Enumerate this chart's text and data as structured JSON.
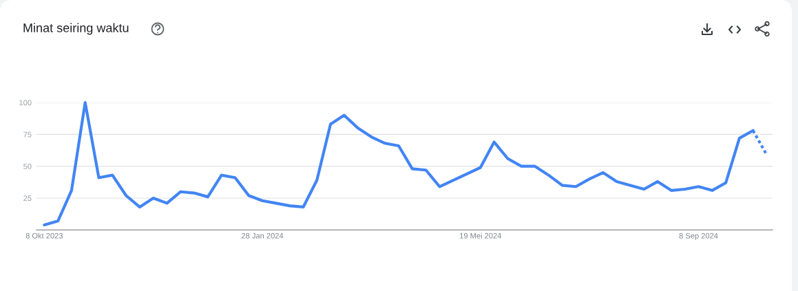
{
  "chart_data": {
    "type": "line",
    "title": "Minat seiring waktu",
    "x": [
      "2023-10-08",
      "2023-10-15",
      "2023-10-22",
      "2023-10-29",
      "2023-11-05",
      "2023-11-12",
      "2023-11-19",
      "2023-11-26",
      "2023-12-03",
      "2023-12-10",
      "2023-12-17",
      "2023-12-24",
      "2023-12-31",
      "2024-01-07",
      "2024-01-14",
      "2024-01-21",
      "2024-01-28",
      "2024-02-04",
      "2024-02-11",
      "2024-02-18",
      "2024-02-25",
      "2024-03-03",
      "2024-03-10",
      "2024-03-17",
      "2024-03-24",
      "2024-03-31",
      "2024-04-07",
      "2024-04-14",
      "2024-04-21",
      "2024-04-28",
      "2024-05-05",
      "2024-05-12",
      "2024-05-19",
      "2024-05-26",
      "2024-06-02",
      "2024-06-09",
      "2024-06-16",
      "2024-06-23",
      "2024-06-30",
      "2024-07-07",
      "2024-07-14",
      "2024-07-21",
      "2024-07-28",
      "2024-08-04",
      "2024-08-11",
      "2024-08-18",
      "2024-08-25",
      "2024-09-01",
      "2024-09-08",
      "2024-09-15",
      "2024-09-22",
      "2024-09-29",
      "2024-10-06",
      "2024-10-13"
    ],
    "series": [
      {
        "color": "#4285f4",
        "line_style": "solid",
        "values": [
          4,
          7,
          31,
          100,
          41,
          43,
          27,
          18,
          25,
          21,
          30,
          29,
          26,
          43,
          41,
          27,
          23,
          21,
          19,
          18,
          39,
          83,
          90,
          80,
          73,
          68,
          66,
          48,
          47,
          34,
          39,
          44,
          49,
          69,
          56,
          50,
          50,
          43,
          35,
          34,
          40,
          45,
          38,
          35,
          32,
          38,
          31,
          32,
          34,
          31,
          37,
          72,
          78,
          null
        ]
      },
      {
        "color": "#4285f4",
        "line_style": "dotted",
        "values": [
          null,
          null,
          null,
          null,
          null,
          null,
          null,
          null,
          null,
          null,
          null,
          null,
          null,
          null,
          null,
          null,
          null,
          null,
          null,
          null,
          null,
          null,
          null,
          null,
          null,
          null,
          null,
          null,
          null,
          null,
          null,
          null,
          null,
          null,
          null,
          null,
          null,
          null,
          null,
          null,
          null,
          null,
          null,
          null,
          null,
          null,
          null,
          null,
          null,
          null,
          null,
          null,
          78,
          59
        ]
      }
    ],
    "xlim": [
      "2023-10-04",
      "2024-10-16"
    ],
    "xticks": [
      {
        "value": "2023-10-08",
        "label": "8 Okt 2023"
      },
      {
        "value": "2024-01-28",
        "label": "28 Jan 2024"
      },
      {
        "value": "2024-05-19",
        "label": "19 Mei 2024"
      },
      {
        "value": "2024-09-08",
        "label": "8 Sep 2024"
      }
    ],
    "ylim": [
      0,
      100
    ],
    "yticks": [
      25,
      50,
      75,
      100
    ],
    "grid": "y"
  }
}
